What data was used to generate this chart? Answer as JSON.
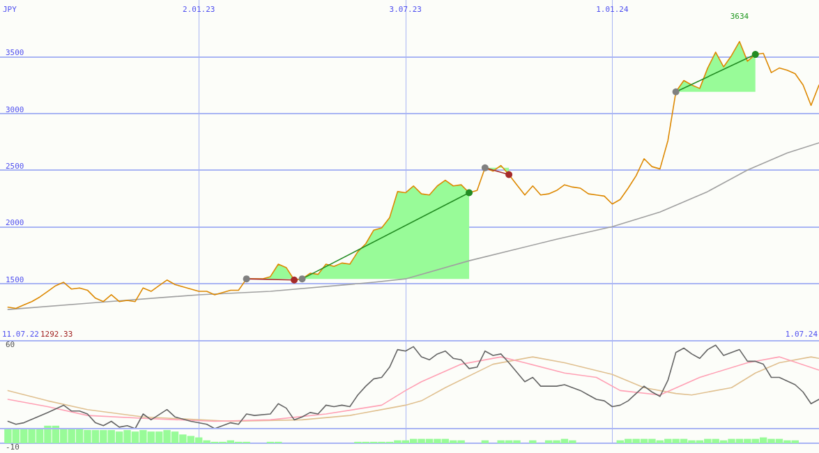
{
  "chart_data": [
    {
      "type": "line",
      "ylabel": "JPY",
      "grid": true,
      "xlim": [
        "2022-07-11",
        "2024-07-01"
      ],
      "xticks": [
        {
          "value": "2023-01-02",
          "label": "2.01.23"
        },
        {
          "value": "2023-07-03",
          "label": "3.07.23"
        },
        {
          "value": "2024-01-01",
          "label": "1.01.24"
        }
      ],
      "ylim": [
        1000,
        4000
      ],
      "yticks": [
        1500,
        2000,
        2500,
        3000,
        3500
      ],
      "annotations": [
        "11.07.22",
        "1292.33",
        "1.07.24",
        {
          "text": "3634",
          "x": "2024-04-22",
          "y": 3634
        }
      ],
      "x": [
        "2022-07-18",
        "2022-07-25",
        "2022-08-01",
        "2022-08-08",
        "2022-08-15",
        "2022-08-22",
        "2022-08-29",
        "2022-09-05",
        "2022-09-12",
        "2022-09-19",
        "2022-09-26",
        "2022-10-03",
        "2022-10-10",
        "2022-10-17",
        "2022-10-24",
        "2022-10-31",
        "2022-11-07",
        "2022-11-14",
        "2022-11-21",
        "2022-11-28",
        "2022-12-05",
        "2022-12-12",
        "2022-12-19",
        "2022-12-26",
        "2023-01-02",
        "2023-01-09",
        "2023-01-16",
        "2023-01-23",
        "2023-01-30",
        "2023-02-06",
        "2023-02-13",
        "2023-02-20",
        "2023-02-27",
        "2023-03-06",
        "2023-03-13",
        "2023-03-20",
        "2023-03-27",
        "2023-04-03",
        "2023-04-10",
        "2023-04-17",
        "2023-04-24",
        "2023-05-01",
        "2023-05-08",
        "2023-05-15",
        "2023-05-22",
        "2023-05-29",
        "2023-06-05",
        "2023-06-12",
        "2023-06-19",
        "2023-06-26",
        "2023-07-03",
        "2023-07-10",
        "2023-07-17",
        "2023-07-24",
        "2023-07-31",
        "2023-08-07",
        "2023-08-14",
        "2023-08-21",
        "2023-08-28",
        "2023-09-04",
        "2023-09-11",
        "2023-09-18",
        "2023-09-25",
        "2023-10-02",
        "2023-10-09",
        "2023-10-16",
        "2023-10-23",
        "2023-10-30",
        "2023-11-06",
        "2023-11-13",
        "2023-11-20",
        "2023-11-27",
        "2023-12-04",
        "2023-12-11",
        "2023-12-18",
        "2023-12-25",
        "2024-01-01",
        "2024-01-08",
        "2024-01-15",
        "2024-01-22",
        "2024-01-29",
        "2024-02-05",
        "2024-02-12",
        "2024-02-19",
        "2024-02-26",
        "2024-03-04",
        "2024-03-11",
        "2024-03-18",
        "2024-03-25",
        "2024-04-01",
        "2024-04-08",
        "2024-04-15",
        "2024-04-22",
        "2024-04-29",
        "2024-05-06",
        "2024-05-13",
        "2024-05-20",
        "2024-05-27",
        "2024-06-03",
        "2024-06-10",
        "2024-06-17",
        "2024-06-24",
        "2024-07-01"
      ],
      "series": [
        {
          "color": "#a0a0a0",
          "x": [
            "2022-07-18",
            "2022-10-03",
            "2023-01-02",
            "2023-03-06",
            "2023-06-05",
            "2023-07-03",
            "2023-08-28",
            "2023-11-13",
            "2024-01-01",
            "2024-02-12",
            "2024-03-25",
            "2024-04-29",
            "2024-06-03",
            "2024-07-01"
          ],
          "values": [
            1270,
            1330,
            1400,
            1430,
            1510,
            1540,
            1700,
            1890,
            2000,
            2130,
            2310,
            2500,
            2650,
            2740
          ]
        },
        {
          "color": "#dd8800",
          "values": [
            1290,
            1280,
            1310,
            1340,
            1380,
            1430,
            1480,
            1510,
            1450,
            1460,
            1440,
            1370,
            1340,
            1400,
            1340,
            1350,
            1340,
            1460,
            1430,
            1480,
            1530,
            1490,
            1470,
            1450,
            1430,
            1430,
            1400,
            1420,
            1440,
            1440,
            1540,
            1540,
            1540,
            1560,
            1670,
            1640,
            1530,
            1540,
            1590,
            1580,
            1670,
            1650,
            1680,
            1670,
            1780,
            1850,
            1970,
            1990,
            2080,
            2310,
            2300,
            2360,
            2290,
            2280,
            2360,
            2410,
            2360,
            2370,
            2300,
            2320,
            2520,
            2490,
            2540,
            2460,
            2370,
            2280,
            2360,
            2280,
            2290,
            2320,
            2370,
            2350,
            2340,
            2290,
            2280,
            2270,
            2200,
            2240,
            2340,
            2450,
            2600,
            2530,
            2510,
            2760,
            3190,
            3290,
            3250,
            3220,
            3400,
            3540,
            3410,
            3510,
            3634,
            3460,
            3520,
            3530,
            3360,
            3400,
            3380,
            3350,
            3250,
            3070,
            3250
          ],
          "lower": [
            null,
            null,
            null,
            null,
            null,
            null,
            null,
            null,
            null,
            null,
            null,
            null,
            null,
            null,
            null,
            null,
            null,
            null,
            null,
            null,
            null,
            null,
            null,
            null,
            null,
            null,
            null,
            null,
            null,
            null,
            1540,
            1540,
            1540,
            1540,
            1540,
            1540,
            1540,
            1540,
            1540,
            1540,
            1540,
            1540,
            1540,
            1540,
            1540,
            1540,
            1540,
            1540,
            1540,
            1540,
            1540,
            1540,
            1540,
            1540,
            1540,
            1540,
            1540,
            1540,
            1540,
            null,
            2520,
            2520,
            2520,
            2520,
            null,
            null,
            null,
            null,
            null,
            null,
            null,
            null,
            null,
            null,
            null,
            null,
            null,
            null,
            null,
            null,
            null,
            null,
            null,
            null,
            3190,
            3190,
            3190,
            3190,
            3190,
            3190,
            3190,
            3190,
            3190,
            3190,
            3190,
            null,
            null,
            null,
            null,
            null,
            null,
            null,
            null
          ],
          "upper": [
            null,
            null,
            null,
            null,
            null,
            null,
            null,
            null,
            null,
            null,
            null,
            null,
            null,
            null,
            null,
            null,
            null,
            null,
            null,
            null,
            null,
            null,
            null,
            null,
            null,
            null,
            null,
            null,
            null,
            null,
            1540,
            1540,
            1540,
            1560,
            1670,
            1640,
            1530,
            1540,
            1590,
            1580,
            1670,
            1650,
            1680,
            1670,
            1780,
            1850,
            1970,
            1990,
            2080,
            2310,
            2300,
            2360,
            2290,
            2280,
            2360,
            2410,
            2360,
            2370,
            2300,
            null,
            2520,
            2490,
            2540,
            2460,
            null,
            null,
            null,
            null,
            null,
            null,
            null,
            null,
            null,
            null,
            null,
            null,
            null,
            null,
            null,
            null,
            null,
            null,
            null,
            null,
            3190,
            3290,
            3250,
            3220,
            3400,
            3540,
            3410,
            3510,
            3634,
            3460,
            3520,
            null,
            null,
            null,
            null,
            null,
            null,
            null,
            null
          ]
        },
        {
          "color": "#a52a2a",
          "x": [
            "2023-02-13",
            "2023-03-27"
          ],
          "values": [
            1540,
            1530
          ]
        },
        {
          "color": "#228b22",
          "x": [
            "2023-04-03",
            "2023-08-28"
          ],
          "values": [
            1540,
            2300
          ]
        },
        {
          "color": "#a52a2a",
          "x": [
            "2023-09-11",
            "2023-10-02"
          ],
          "values": [
            2520,
            2460
          ]
        },
        {
          "color": "#228b22",
          "x": [
            "2024-02-26",
            "2024-05-06"
          ],
          "values": [
            3190,
            3520
          ]
        },
        {
          "type": "scatter",
          "color": "#808080",
          "marker": "circle",
          "x": [
            "2023-02-13",
            "2023-04-03",
            "2023-09-11",
            "2024-02-26"
          ],
          "values": [
            1540,
            1540,
            2520,
            3190
          ]
        },
        {
          "type": "scatter",
          "color": "#a52a2a",
          "marker": "circle",
          "x": [
            "2023-03-27",
            "2023-10-02"
          ],
          "values": [
            1530,
            2460
          ]
        },
        {
          "type": "scatter",
          "color": "#228b22",
          "marker": "circle",
          "x": [
            "2023-08-28",
            "2024-05-06"
          ],
          "values": [
            2300,
            3520
          ]
        }
      ]
    },
    {
      "type": "line",
      "grid": true,
      "tick_labels": "y",
      "xlim": [
        "2022-07-11",
        "2024-07-01"
      ],
      "xticks": [
        {
          "value": "2023-01-02",
          "label": null
        },
        {
          "value": "2023-07-03",
          "label": null
        },
        {
          "value": "2024-01-01",
          "label": null
        }
      ],
      "ylim": [
        -10,
        60
      ],
      "yticks": [
        -10,
        60
      ],
      "ref_lines": [
        {
          "axis": "y",
          "value": 0
        }
      ],
      "series": [
        {
          "type": "bar",
          "color": "#98fb98",
          "x": [
            "2022-07-18",
            "2022-07-25",
            "2022-08-01",
            "2022-08-08",
            "2022-08-15",
            "2022-08-22",
            "2022-08-29",
            "2022-09-05",
            "2022-09-12",
            "2022-09-19",
            "2022-09-26",
            "2022-10-03",
            "2022-10-10",
            "2022-10-17",
            "2022-10-24",
            "2022-10-31",
            "2022-11-07",
            "2022-11-14",
            "2022-11-21",
            "2022-11-28",
            "2022-12-05",
            "2022-12-12",
            "2022-12-19",
            "2022-12-26",
            "2023-01-02",
            "2023-01-09",
            "2023-01-16",
            "2023-01-23",
            "2023-01-30",
            "2023-02-06",
            "2023-02-13",
            "2023-03-06",
            "2023-03-13",
            "2023-05-22",
            "2023-05-29",
            "2023-06-05",
            "2023-06-12",
            "2023-06-19",
            "2023-06-26",
            "2023-07-03",
            "2023-07-10",
            "2023-07-17",
            "2023-07-24",
            "2023-07-31",
            "2023-08-07",
            "2023-08-14",
            "2023-08-21",
            "2023-09-11",
            "2023-09-25",
            "2023-10-02",
            "2023-10-09",
            "2023-10-23",
            "2023-11-06",
            "2023-11-13",
            "2023-11-20",
            "2023-11-27",
            "2024-01-08",
            "2024-01-15",
            "2024-01-22",
            "2024-01-29",
            "2024-02-05",
            "2024-02-12",
            "2024-02-19",
            "2024-02-26",
            "2024-03-04",
            "2024-03-11",
            "2024-03-18",
            "2024-03-25",
            "2024-04-01",
            "2024-04-08",
            "2024-04-15",
            "2024-04-22",
            "2024-04-29",
            "2024-05-06",
            "2024-05-13",
            "2024-05-20",
            "2024-05-27",
            "2024-06-03",
            "2024-06-10"
          ],
          "values": [
            10,
            10,
            10,
            10,
            10,
            12,
            12,
            10,
            10,
            10,
            9,
            9,
            9,
            9,
            8,
            9,
            8,
            9,
            8,
            8,
            9,
            8,
            6,
            5,
            4,
            2,
            1,
            1,
            2,
            1,
            1,
            1,
            1,
            1,
            1,
            1,
            1,
            1,
            2,
            2,
            3,
            3,
            3,
            3,
            3,
            2,
            2,
            2,
            2,
            2,
            2,
            2,
            2,
            2,
            3,
            2,
            2,
            3,
            3,
            3,
            3,
            2,
            3,
            3,
            3,
            2,
            2,
            3,
            3,
            2,
            3,
            3,
            3,
            3,
            4,
            3,
            3,
            2,
            2
          ],
          "base": [
            -10,
            -10,
            -10,
            -10,
            -10,
            -10,
            -10,
            -10,
            -10,
            -10,
            -10,
            -10,
            -10,
            -10,
            -10,
            -10,
            -10,
            -10,
            -10,
            -10,
            -10,
            -10,
            -10,
            -10,
            -10,
            -10,
            -10,
            -10,
            -10,
            -10,
            -10,
            -10,
            -10,
            -10,
            -10,
            -10,
            -10,
            -10,
            -10,
            -10,
            -10,
            -10,
            -10,
            -10,
            -10,
            -10,
            -10,
            -10,
            -10,
            -10,
            -10,
            -10,
            -10,
            -10,
            -10,
            -10,
            -10,
            -10,
            -10,
            -10,
            -10,
            -10,
            -10,
            -10,
            -10,
            -10,
            -10,
            -10,
            -10,
            -10,
            -10,
            -10,
            -10,
            -10,
            -10,
            -10,
            -10,
            -10,
            -10
          ]
        },
        {
          "color": "#e0c090",
          "x": [
            "2022-07-18",
            "2022-08-22",
            "2022-09-26",
            "2022-11-14",
            "2023-01-30",
            "2023-04-03",
            "2023-05-15",
            "2023-06-19",
            "2023-07-03",
            "2023-07-17",
            "2023-08-07",
            "2023-09-18",
            "2023-10-23",
            "2023-11-20",
            "2024-01-01",
            "2024-01-29",
            "2024-02-26",
            "2024-03-11",
            "2024-04-15",
            "2024-05-06",
            "2024-05-27",
            "2024-06-24",
            "2024-07-01"
          ],
          "values": [
            26,
            19,
            13,
            8,
            5,
            6,
            9,
            14,
            16,
            19,
            28,
            44,
            49,
            45,
            37,
            28,
            24,
            23,
            28,
            38,
            45,
            49,
            48
          ]
        },
        {
          "color": "#ffa0b4",
          "x": [
            "2022-07-18",
            "2022-08-22",
            "2022-09-26",
            "2022-11-14",
            "2023-01-16",
            "2023-03-06",
            "2023-04-24",
            "2023-06-12",
            "2023-07-03",
            "2023-07-17",
            "2023-08-21",
            "2023-09-25",
            "2023-10-16",
            "2023-11-20",
            "2023-12-18",
            "2024-01-08",
            "2024-02-12",
            "2024-03-18",
            "2024-04-29",
            "2024-05-27",
            "2024-07-01"
          ],
          "values": [
            20,
            15,
            9,
            7,
            5,
            6,
            10,
            16,
            26,
            32,
            44,
            49,
            45,
            38,
            35,
            26,
            23,
            35,
            45,
            49,
            40
          ]
        },
        {
          "color": "#646464",
          "x": [
            "2022-07-18",
            "2022-07-25",
            "2022-08-01",
            "2022-08-22",
            "2022-09-05",
            "2022-09-12",
            "2022-09-19",
            "2022-09-26",
            "2022-10-03",
            "2022-10-10",
            "2022-10-17",
            "2022-10-24",
            "2022-10-31",
            "2022-11-07",
            "2022-11-14",
            "2022-11-21",
            "2022-12-05",
            "2022-12-12",
            "2022-12-26",
            "2023-01-09",
            "2023-01-16",
            "2023-01-23",
            "2023-01-30",
            "2023-02-06",
            "2023-02-13",
            "2023-02-20",
            "2023-03-06",
            "2023-03-13",
            "2023-03-20",
            "2023-03-27",
            "2023-04-03",
            "2023-04-10",
            "2023-04-17",
            "2023-04-24",
            "2023-05-01",
            "2023-05-08",
            "2023-05-15",
            "2023-05-22",
            "2023-05-29",
            "2023-06-05",
            "2023-06-12",
            "2023-06-19",
            "2023-06-26",
            "2023-07-03",
            "2023-07-10",
            "2023-07-17",
            "2023-07-24",
            "2023-07-31",
            "2023-08-07",
            "2023-08-14",
            "2023-08-21",
            "2023-08-28",
            "2023-09-04",
            "2023-09-11",
            "2023-09-18",
            "2023-09-25",
            "2023-10-02",
            "2023-10-16",
            "2023-10-23",
            "2023-10-30",
            "2023-11-06",
            "2023-11-13",
            "2023-11-20",
            "2023-12-04",
            "2023-12-11",
            "2023-12-18",
            "2023-12-25",
            "2024-01-01",
            "2024-01-08",
            "2024-01-15",
            "2024-01-29",
            "2024-02-05",
            "2024-02-12",
            "2024-02-19",
            "2024-02-26",
            "2024-03-04",
            "2024-03-11",
            "2024-03-18",
            "2024-03-25",
            "2024-04-01",
            "2024-04-08",
            "2024-04-22",
            "2024-04-29",
            "2024-05-06",
            "2024-05-13",
            "2024-05-20",
            "2024-05-27",
            "2024-06-10",
            "2024-06-17",
            "2024-06-24",
            "2024-07-01"
          ],
          "values": [
            5,
            3,
            4,
            11,
            16,
            12,
            12,
            10,
            4,
            2,
            5,
            1,
            2,
            0,
            10,
            6,
            13,
            8,
            5,
            3,
            0,
            2,
            4,
            3,
            10,
            9,
            10,
            17,
            14,
            6,
            8,
            11,
            10,
            16,
            15,
            16,
            15,
            23,
            29,
            34,
            35,
            42,
            54,
            53,
            56,
            49,
            47,
            51,
            53,
            48,
            47,
            41,
            42,
            53,
            50,
            51,
            45,
            32,
            35,
            29,
            29,
            29,
            30,
            26,
            23,
            20,
            19,
            15,
            16,
            19,
            29,
            25,
            22,
            33,
            52,
            55,
            51,
            48,
            54,
            57,
            50,
            54,
            46,
            46,
            44,
            35,
            35,
            30,
            25,
            17,
            20
          ]
        }
      ]
    }
  ]
}
